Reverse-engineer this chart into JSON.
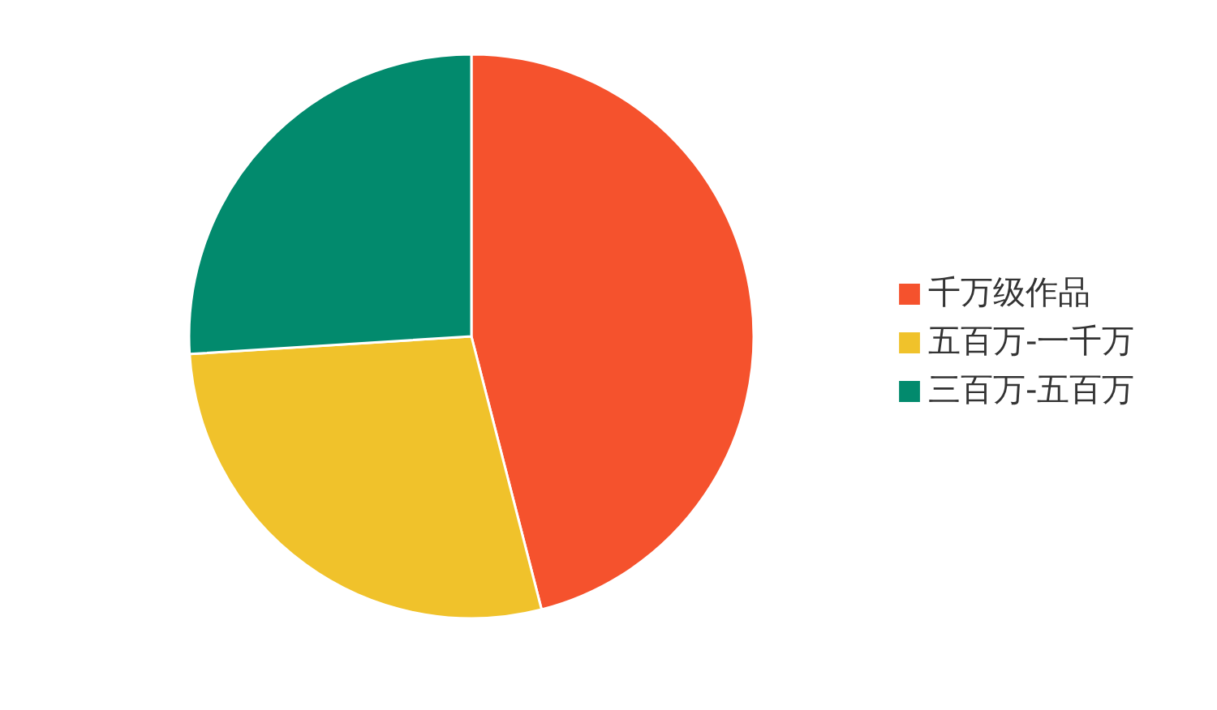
{
  "chart_data": {
    "type": "pie",
    "categories": [
      "千万级作品",
      "五百万-一千万",
      "三百万-五百万"
    ],
    "values": [
      46,
      28,
      26
    ],
    "colors": [
      "#f5522d",
      "#f0c22b",
      "#028a6d"
    ],
    "legend": "right"
  }
}
